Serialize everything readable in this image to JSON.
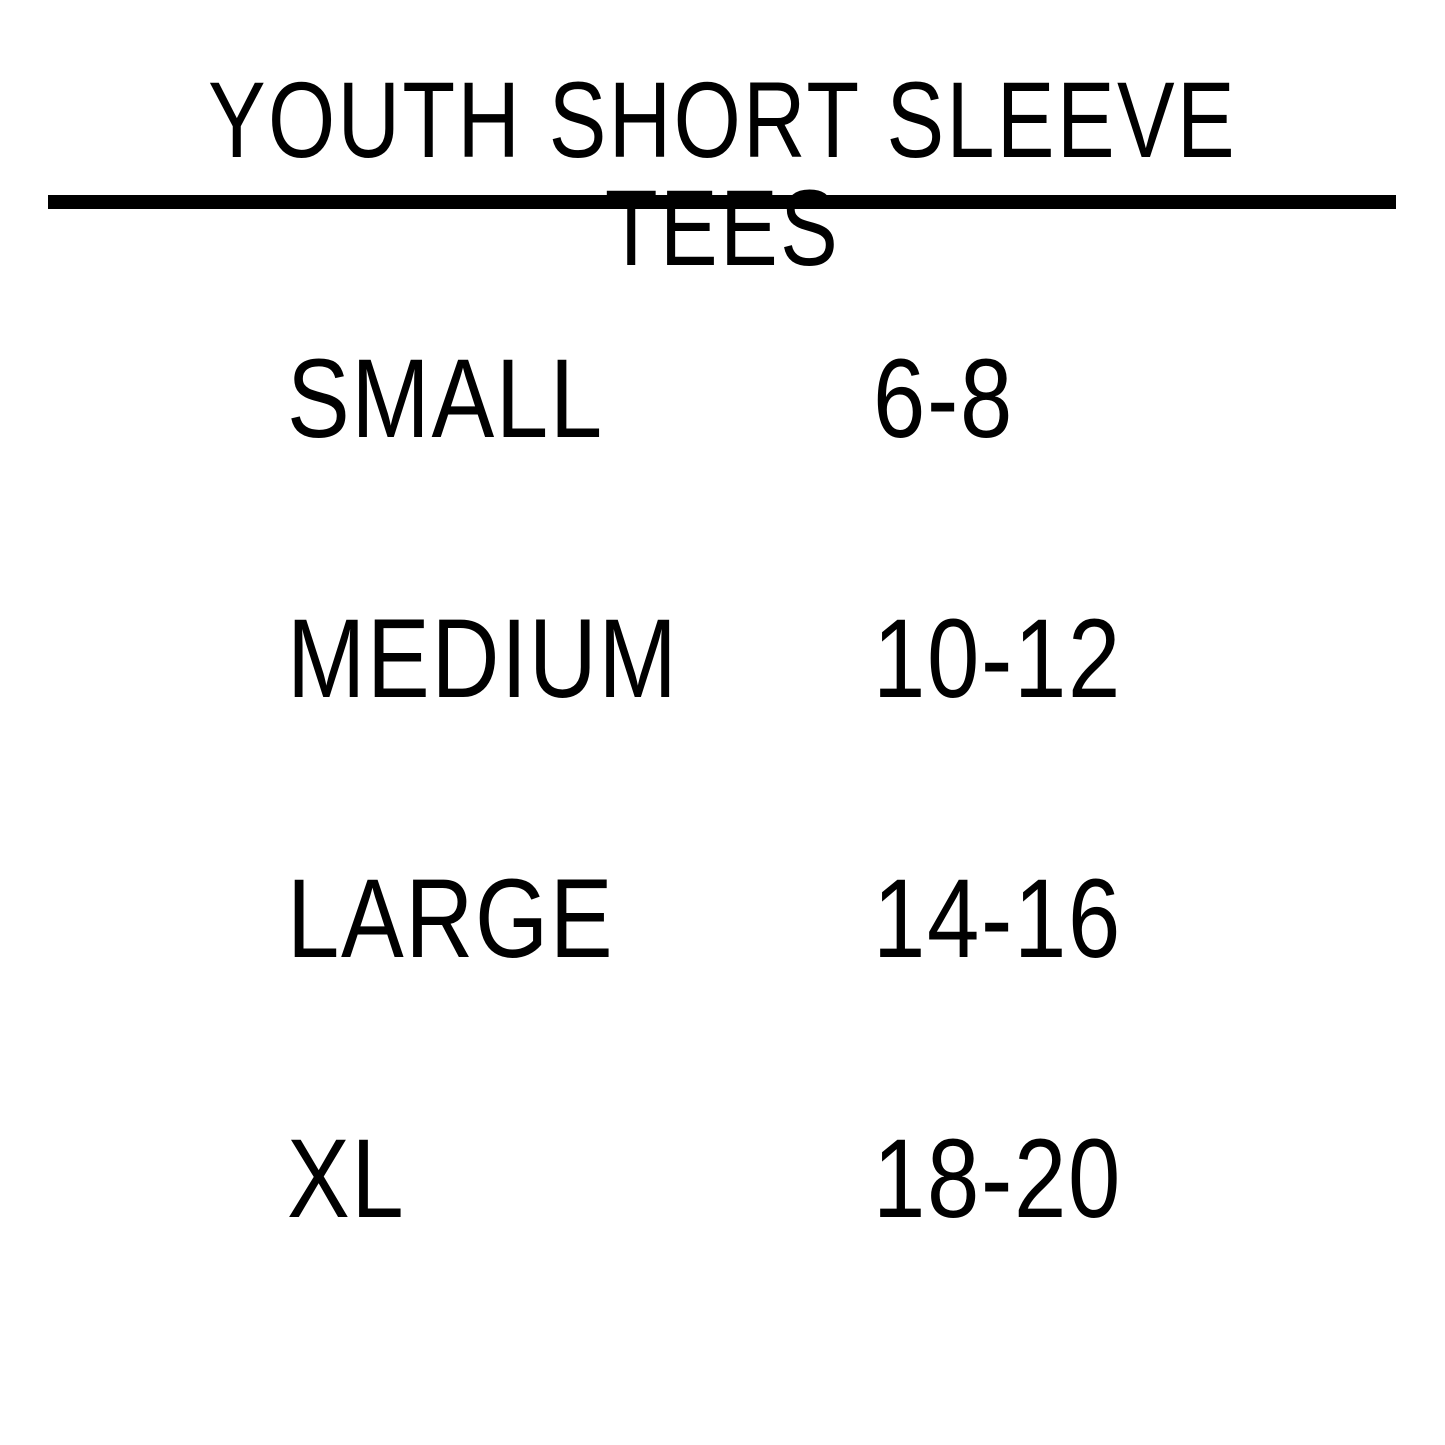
{
  "title": "YOUTH SHORT SLEEVE TEES",
  "rows": [
    {
      "size": "SMALL",
      "ages": "6-8"
    },
    {
      "size": "MEDIUM",
      "ages": "10-12"
    },
    {
      "size": "LARGE",
      "ages": "14-16"
    },
    {
      "size": "XL",
      "ages": "18-20"
    }
  ]
}
